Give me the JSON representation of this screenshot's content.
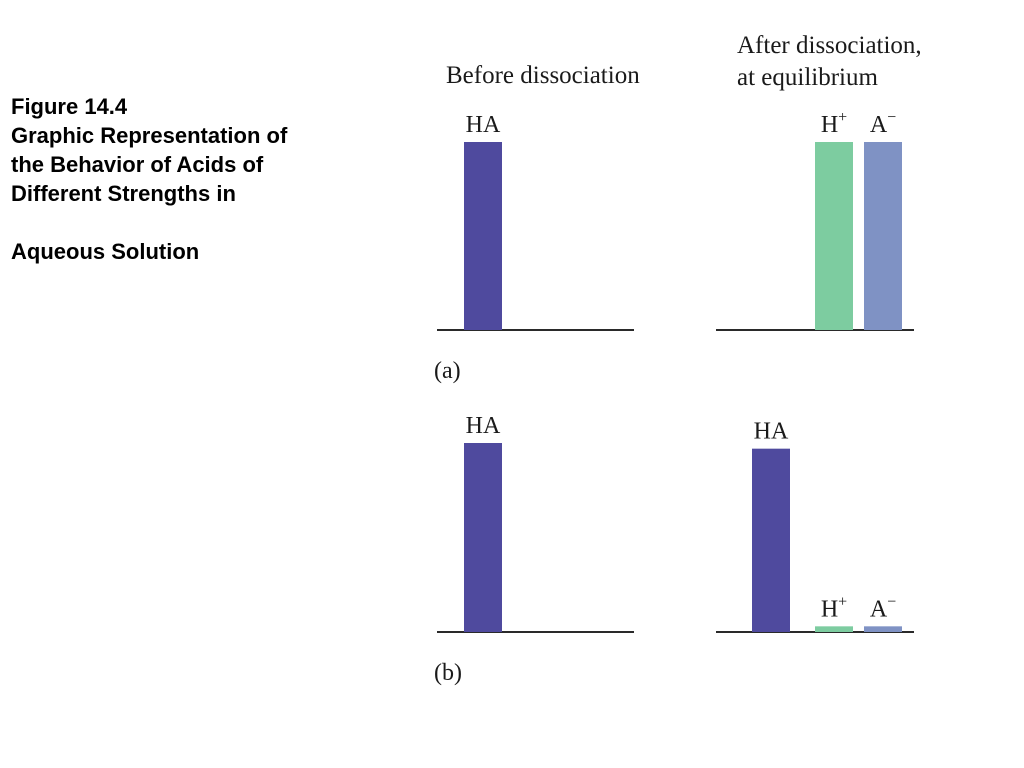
{
  "caption": {
    "figure_number": "Figure 14.4",
    "title_lines": [
      "Graphic Representation of",
      "the Behavior of Acids of",
      "Different Strengths in"
    ],
    "title_last_line": "Aqueous Solution"
  },
  "headers": {
    "before": "Before dissociation",
    "after_line1": "After dissociation,",
    "after_line2": "at equilibrium"
  },
  "colors": {
    "HA": "#4f4a9e",
    "H+": "#7dcca0",
    "A-": "#7f92c4",
    "axis": "#2a2a2a"
  },
  "chart_data": [
    {
      "type": "bar",
      "panel_label": "(a)",
      "panels": [
        {
          "name": "before",
          "bars": [
            {
              "species": "HA",
              "label": "HA",
              "value": 1.0
            }
          ]
        },
        {
          "name": "after",
          "bars": [
            {
              "species": "H+",
              "label": "H",
              "superscript": "+",
              "value": 1.0
            },
            {
              "species": "A-",
              "label": "A",
              "superscript": "−",
              "value": 1.0
            }
          ]
        }
      ]
    },
    {
      "type": "bar",
      "panel_label": "(b)",
      "panels": [
        {
          "name": "before",
          "bars": [
            {
              "species": "HA",
              "label": "HA",
              "value": 1.0
            }
          ]
        },
        {
          "name": "after",
          "bars": [
            {
              "species": "HA",
              "label": "HA",
              "value": 0.97
            },
            {
              "species": "H+",
              "label": "H",
              "superscript": "+",
              "value": 0.03
            },
            {
              "species": "A-",
              "label": "A",
              "superscript": "−",
              "value": 0.03
            }
          ]
        }
      ]
    }
  ]
}
